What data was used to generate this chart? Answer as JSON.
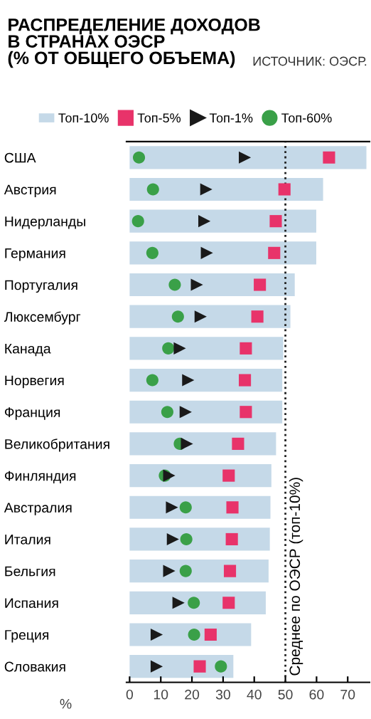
{
  "chart_data": {
    "type": "bar",
    "orientation": "horizontal",
    "title": "РАСПРЕДЕЛЕНИЕ ДОХОДОВ\nВ СТРАНАХ ОЭСР\n(% ОТ ОБЩЕГО ОБЪЕМА)",
    "annotations": [
      "ИСТОЧНИК: ОЭСР."
    ],
    "xlabel": "%",
    "categories": [
      "США",
      "Австрия",
      "Нидерланды",
      "Германия",
      "Португалия",
      "Люксембург",
      "Канада",
      "Норвегия",
      "Франция",
      "Великобритания",
      "Финляндия",
      "Австралия",
      "Италия",
      "Бельгия",
      "Испания",
      "Греция",
      "Словакия"
    ],
    "series": [
      {
        "name": "Топ-10%",
        "color": "#c5d9e8",
        "values": [
          76,
          62.1,
          59.9,
          59.9,
          53,
          51.6,
          49.3,
          49,
          49,
          47,
          45.5,
          45.2,
          45,
          44.6,
          43.7,
          39,
          33.3
        ]
      },
      {
        "name": "Топ-5%",
        "type": "scatter",
        "marker": "square",
        "color": "#e8336a",
        "values": [
          64,
          49.7,
          46.9,
          46.4,
          41.8,
          41,
          37.3,
          37,
          37.3,
          34.8,
          31.8,
          33,
          32.8,
          32.2,
          31.8,
          26,
          22.5
        ]
      },
      {
        "name": "Топ-1%",
        "type": "scatter",
        "marker": "triangle",
        "color": "#1a1a1a",
        "values": [
          37,
          24.6,
          24,
          24.8,
          21.6,
          22.8,
          16.1,
          18.8,
          18,
          18.4,
          12.7,
          13.6,
          13.9,
          12.7,
          15.7,
          8.7,
          8.7
        ]
      },
      {
        "name": "Топ-60%",
        "type": "scatter",
        "marker": "circle",
        "color": "#3aa048",
        "values": [
          3,
          7.5,
          2.7,
          7.3,
          14.5,
          15.5,
          12.4,
          7.3,
          12.1,
          16.1,
          11.3,
          18,
          18.2,
          18,
          20.6,
          20.7,
          29.3
        ]
      }
    ],
    "xlim": [
      -1,
      77
    ],
    "xticks": [
      0,
      10,
      20,
      30,
      40,
      50,
      60,
      70
    ],
    "ref_lines": [
      {
        "axis": "x",
        "value": 50,
        "label": "Среднее по ОЭСР (топ-10%)",
        "color": "#222222",
        "line_style": "dotted"
      }
    ],
    "grid": false,
    "legend": "top"
  }
}
